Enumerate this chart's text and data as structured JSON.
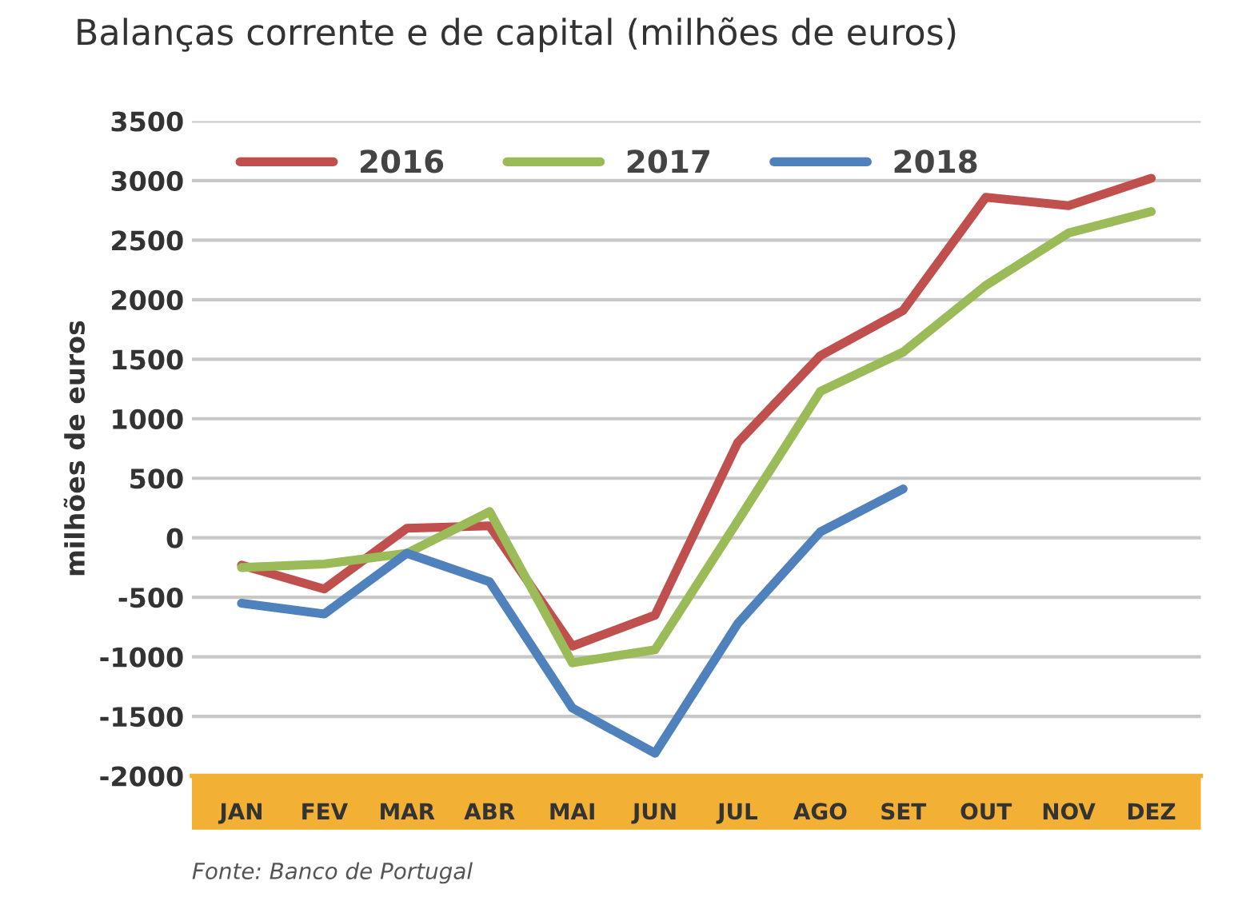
{
  "chart_data": {
    "type": "line",
    "title": "Balanças corrente e de capital (milhões de euros)",
    "ylabel": "milhões de euros",
    "categories": [
      "JAN",
      "FEV",
      "MAR",
      "ABR",
      "MAI",
      "JUN",
      "JUL",
      "AGO",
      "SET",
      "OUT",
      "NOV",
      "DEZ"
    ],
    "series": [
      {
        "name": "2016",
        "color": "#c0504d",
        "values": [
          -230,
          -430,
          80,
          100,
          -910,
          -650,
          800,
          1530,
          1910,
          2860,
          2790,
          3020
        ]
      },
      {
        "name": "2017",
        "color": "#9bbb59",
        "values": [
          -250,
          -220,
          -130,
          220,
          -1050,
          -940,
          140,
          1230,
          1560,
          2120,
          2560,
          2740
        ]
      },
      {
        "name": "2018",
        "color": "#4f81bd",
        "values": [
          -550,
          -640,
          -130,
          -370,
          -1430,
          -1810,
          -720,
          50,
          410,
          null,
          null,
          null
        ]
      }
    ],
    "ylim": [
      -2000,
      3500
    ],
    "yticks": [
      -2000,
      -1500,
      -1000,
      -500,
      0,
      500,
      1000,
      1500,
      2000,
      2500,
      3000,
      3500
    ],
    "grid": "y",
    "legend": "top left",
    "marker": "none",
    "line_style": "solid",
    "annotations": [
      "Fonte: Banco de Portugal"
    ]
  }
}
